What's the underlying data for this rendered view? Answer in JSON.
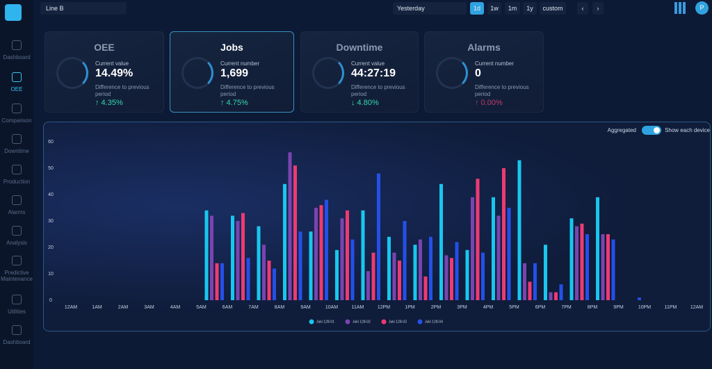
{
  "header": {
    "line": "Line B",
    "period": "Yesterday",
    "ranges": [
      "1d",
      "1w",
      "1m",
      "1y",
      "custom"
    ],
    "user": "P"
  },
  "sidebar": [
    "Dashboard",
    "OEE",
    "Comparison",
    "Downtime",
    "Production",
    "Alarms",
    "Analysis",
    "Predictive Maintenance",
    "Utilities",
    "Dashboard"
  ],
  "kpis": [
    {
      "title": "OEE",
      "label": "Current value",
      "value": "14.49%",
      "diff_label": "Difference to previous period",
      "diff": "↑ 4.35%"
    },
    {
      "title": "Jobs",
      "label": "Current number",
      "value": "1,699",
      "diff_label": "Difference to previous period",
      "diff": "↑ 4.75%"
    },
    {
      "title": "Downtime",
      "label": "Current value",
      "value": "44:27:19",
      "diff_label": "Difference to previous period",
      "diff": "↓ 4.80%"
    },
    {
      "title": "Alarms",
      "label": "Current number",
      "value": "0",
      "diff_label": "Difference to previous period",
      "diff": "↑ 0.00%"
    }
  ],
  "toggle": {
    "left": "Aggregated",
    "right": "Show each device"
  },
  "chart_data": {
    "type": "bar",
    "categories": [
      "12AM",
      "1AM",
      "2AM",
      "3AM",
      "4AM",
      "5AM",
      "6AM",
      "7AM",
      "8AM",
      "9AM",
      "10AM",
      "11AM",
      "12PM",
      "1PM",
      "2PM",
      "3PM",
      "4PM",
      "5PM",
      "6PM",
      "7PM",
      "8PM",
      "9PM",
      "10PM",
      "11PM",
      "12AM"
    ],
    "series": [
      {
        "name": "Juki 128-01",
        "color": "#19c6ee",
        "values": [
          null,
          null,
          null,
          null,
          null,
          34,
          32,
          28,
          44,
          26,
          19,
          34,
          24,
          21,
          44,
          19,
          39,
          53,
          21,
          31,
          39,
          null,
          null,
          null,
          null
        ]
      },
      {
        "name": "Juki 128-02",
        "color": "#7a44b0",
        "values": [
          null,
          null,
          null,
          null,
          null,
          32,
          30,
          21,
          56,
          35,
          31,
          11,
          18,
          23,
          17,
          39,
          32,
          14,
          3,
          28,
          25,
          null,
          null,
          null,
          null
        ]
      },
      {
        "name": "Juki 128-03",
        "color": "#ee3a72",
        "values": [
          null,
          null,
          null,
          null,
          null,
          14,
          33,
          15,
          51,
          36,
          34,
          18,
          15,
          9,
          16,
          46,
          50,
          7,
          3,
          29,
          25,
          null,
          null,
          null,
          null
        ]
      },
      {
        "name": "Juki 128-04",
        "color": "#2450e8",
        "values": [
          null,
          null,
          null,
          null,
          null,
          14,
          16,
          12,
          26,
          38,
          23,
          48,
          30,
          24,
          22,
          18,
          35,
          14,
          6,
          25,
          23,
          1,
          null,
          null,
          null
        ]
      }
    ],
    "ylim": [
      0,
      60
    ],
    "yticks": [
      0,
      10,
      20,
      30,
      40,
      50,
      60
    ],
    "grid": false,
    "legend": "bottom"
  }
}
